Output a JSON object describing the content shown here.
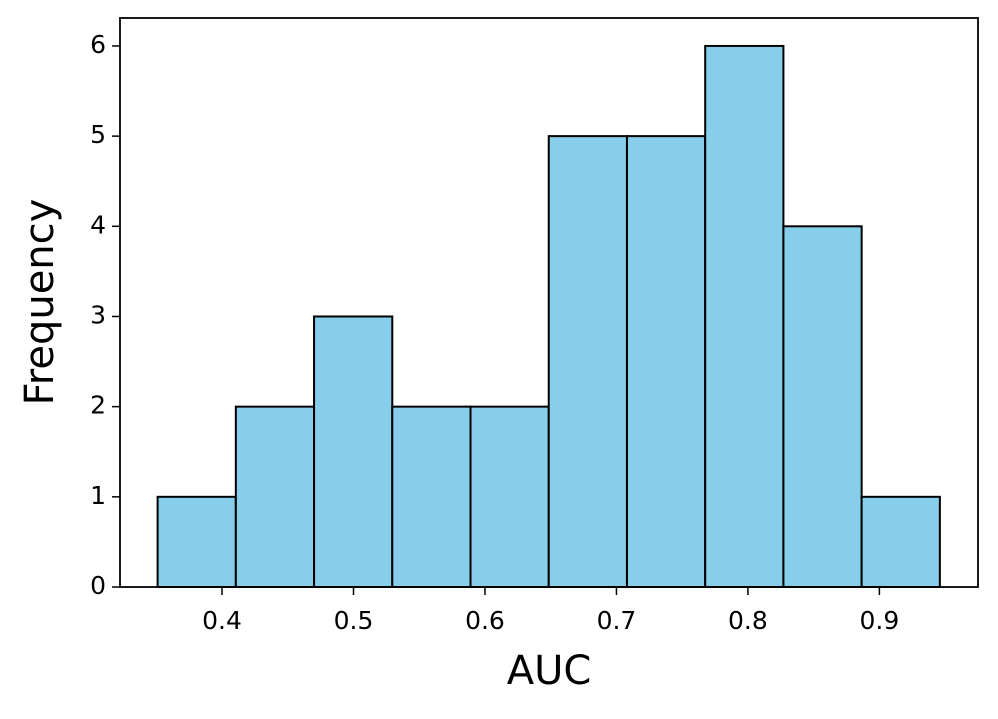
{
  "chart_data": {
    "type": "histogram",
    "x_label": "AUC",
    "y_label": "Frequency",
    "bins": [
      0.351,
      0.4105,
      0.47,
      0.5295,
      0.589,
      0.6485,
      0.708,
      0.7675,
      0.827,
      0.8865,
      0.946
    ],
    "values": [
      1,
      2,
      3,
      2,
      2,
      5,
      5,
      6,
      4,
      1
    ],
    "color": "#87ceeb",
    "edgecolor": "#000000",
    "xlim": [
      0.3224,
      0.975
    ],
    "ylim": [
      0,
      6.31
    ],
    "xticks": [
      0.4,
      0.5,
      0.6,
      0.7,
      0.8,
      0.9
    ],
    "yticks": [
      0,
      1,
      2,
      3,
      4,
      5,
      6
    ],
    "grid": false
  }
}
